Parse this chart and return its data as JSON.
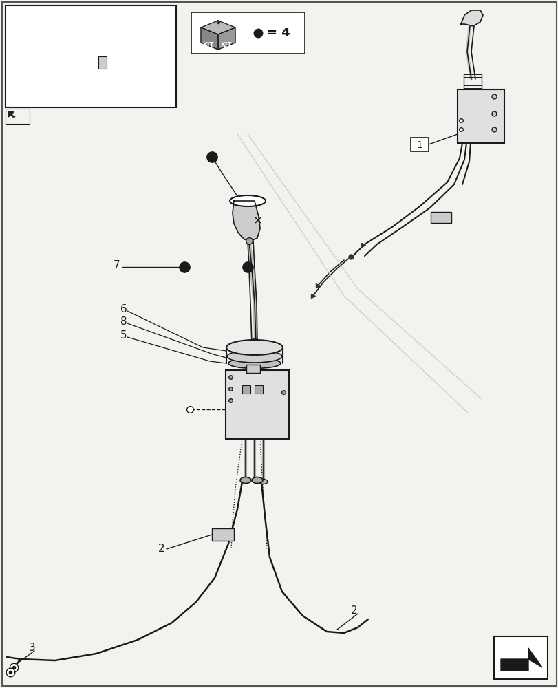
{
  "bg_color": "#f2f2ee",
  "line_color": "#1a1a1a",
  "label_color": "#1a1a1a",
  "page_bg": "#f2f2ee"
}
